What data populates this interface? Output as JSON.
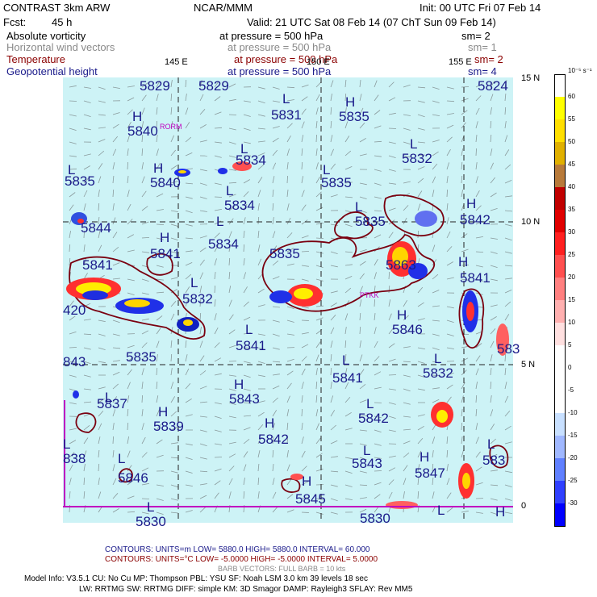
{
  "header": {
    "model": "CONTRAST  3km ARW",
    "org": "NCAR/MMM",
    "init": "Init: 00 UTC Fri 07 Feb 14",
    "fcst_label": "Fcst:",
    "fcst_value": "45 h",
    "valid": "Valid: 21 UTC Sat 08 Feb 14 (07 ChT Sun 09 Feb 14)"
  },
  "fields": [
    {
      "name": "Absolute vorticity",
      "level": "at pressure =  500 hPa",
      "sm": "sm= 2",
      "color": "#000000"
    },
    {
      "name": "Horizontal wind vectors",
      "level": "at pressure =  500 hPa",
      "sm": "sm= 1",
      "color": "#8a8a8a"
    },
    {
      "name": "Temperature",
      "level": "at pressure =  500 hPa",
      "sm": "sm= 2",
      "color": "#8b0000"
    },
    {
      "name": "Geopotential height",
      "level": "at pressure =  500 hPa",
      "sm": "sm= 4",
      "color": "#1a1a8a"
    }
  ],
  "axes": {
    "lon_labels": [
      "145 E",
      "150 E",
      "155 E"
    ],
    "lat_labels": [
      "15 N",
      "10 N",
      "5 N",
      "0"
    ]
  },
  "stations": [
    "RORM",
    "PTKK"
  ],
  "height_labels": [
    {
      "t": "5829"
    },
    {
      "t": "5829"
    },
    {
      "t": "5824"
    },
    {
      "t": "L"
    },
    {
      "t": "5831"
    },
    {
      "t": "H"
    },
    {
      "t": "5835"
    },
    {
      "t": "H"
    },
    {
      "t": "5840"
    },
    {
      "t": "L"
    },
    {
      "t": "5834"
    },
    {
      "t": "L"
    },
    {
      "t": "5832"
    },
    {
      "t": "L"
    },
    {
      "t": "5835"
    },
    {
      "t": "H"
    },
    {
      "t": "5840"
    },
    {
      "t": "L"
    },
    {
      "t": "5835"
    },
    {
      "t": "L"
    },
    {
      "t": "5834"
    },
    {
      "t": "L"
    },
    {
      "t": "5835"
    },
    {
      "t": "H"
    },
    {
      "t": "5842"
    },
    {
      "t": "5844"
    },
    {
      "t": "L"
    },
    {
      "t": "5834"
    },
    {
      "t": "H"
    },
    {
      "t": "5841"
    },
    {
      "t": "5835"
    },
    {
      "t": "5841"
    },
    {
      "t": "5863"
    },
    {
      "t": "H"
    },
    {
      "t": "5841"
    },
    {
      "t": "L"
    },
    {
      "t": "5832"
    },
    {
      "t": "420"
    },
    {
      "t": "H"
    },
    {
      "t": "5846"
    },
    {
      "t": "L"
    },
    {
      "t": "5841"
    },
    {
      "t": "5835"
    },
    {
      "t": "843"
    },
    {
      "t": "L"
    },
    {
      "t": "5832"
    },
    {
      "t": "583"
    },
    {
      "t": "L"
    },
    {
      "t": "5841"
    },
    {
      "t": "H"
    },
    {
      "t": "5843"
    },
    {
      "t": "L"
    },
    {
      "t": "5837"
    },
    {
      "t": "L"
    },
    {
      "t": "5842"
    },
    {
      "t": "H"
    },
    {
      "t": "5839"
    },
    {
      "t": "H"
    },
    {
      "t": "5842"
    },
    {
      "t": "L"
    },
    {
      "t": "838"
    },
    {
      "t": "L"
    },
    {
      "t": "5846"
    },
    {
      "t": "L"
    },
    {
      "t": "5843"
    },
    {
      "t": "H"
    },
    {
      "t": "5847"
    },
    {
      "t": "L"
    },
    {
      "t": "583"
    },
    {
      "t": "H"
    },
    {
      "t": "5845"
    },
    {
      "t": "L"
    },
    {
      "t": "5830"
    },
    {
      "t": "5830"
    },
    {
      "t": "L"
    },
    {
      "t": "H"
    }
  ],
  "colorbar": {
    "unit": "10⁻⁵ s⁻¹",
    "labels": [
      "60",
      "55",
      "50",
      "45",
      "40",
      "35",
      "30",
      "25",
      "20",
      "15",
      "10",
      "5",
      "0",
      "-5",
      "-10",
      "-15",
      "-20",
      "-25",
      "-30"
    ],
    "colors": [
      "#ffffff",
      "#ffff00",
      "#ffdf00",
      "#e0b000",
      "#b87a3a",
      "#c00000",
      "#e00000",
      "#ff2020",
      "#ff5050",
      "#ff8080",
      "#ffb0b0",
      "#ffe0e0",
      "#ffffff",
      "#ffffff",
      "#ffffff",
      "#c8e0ff",
      "#a0b8ff",
      "#6080ff",
      "#3040ff",
      "#0000ff"
    ]
  },
  "footer": {
    "contours1": "CONTOURS:  UNITS=m  LOW=  5880.0        HIGH=  5880.0        INTERVAL=   60.000",
    "contours2": "CONTOURS:  UNITS=°C  LOW= -5.0000       HIGH= -5.0000       INTERVAL=   5.0000",
    "barbs": "BARB VECTORS:  FULL BARB = 10 kts",
    "info1": "Model Info: V3.5.1     CU: No Cu     MP: Thompson     PBL: YSU      SF: Noah LSM      3.0 km   39 levels    18 sec",
    "info2": "LW: RRTMG    SW: RRTMG   DIFF: simple KM: 3D Smagor DAMP: Rayleigh3   SFLAY: Rev MM5"
  }
}
